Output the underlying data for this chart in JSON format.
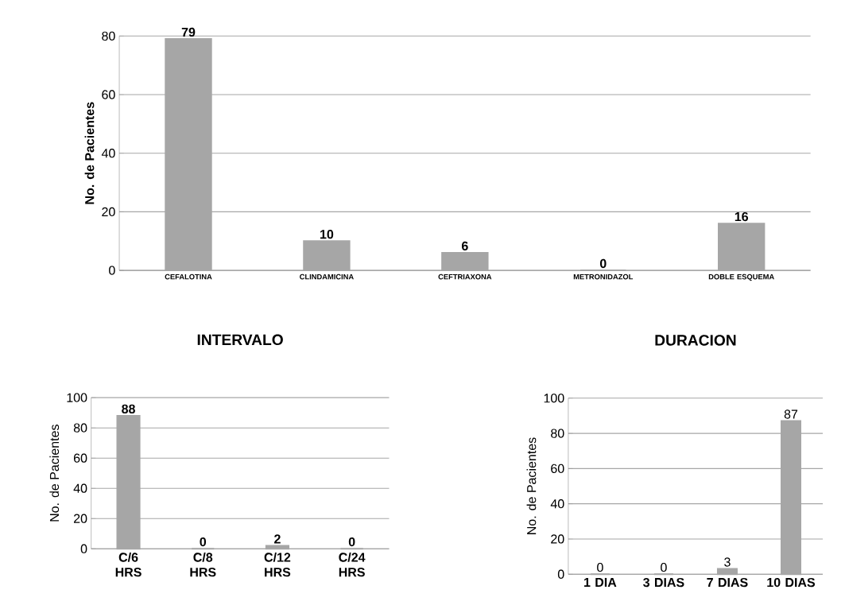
{
  "chart_data": [
    {
      "type": "bar",
      "ylabel": "No. de Pacientes",
      "categories": [
        "CEFALOTINA",
        "CLINDAMICINA",
        "CEFTRIAXONA",
        "METRONIDAZOL",
        "DOBLE ESQUEMA"
      ],
      "values": [
        79,
        10,
        6,
        0,
        16
      ],
      "color": "#a6a6a6",
      "ylim": [
        0,
        80
      ],
      "yticks": [
        0,
        20,
        40,
        60,
        80
      ],
      "grid": "y",
      "data_labels": true
    },
    {
      "type": "bar",
      "title": "INTERVALO",
      "ylabel": "No. de Pacientes",
      "categories": [
        "C/6 HRS",
        "C/8 HRS",
        "C/12 HRS",
        "C/24 HRS"
      ],
      "values": [
        88,
        0,
        2,
        0
      ],
      "color": "#a6a6a6",
      "ylim": [
        0,
        100
      ],
      "yticks": [
        0,
        20,
        40,
        60,
        80,
        100
      ],
      "grid": "y",
      "data_labels": true
    },
    {
      "type": "bar",
      "title": "DURACION",
      "ylabel": "No. de Pacientes",
      "categories": [
        "1 DIA",
        "3 DIAS",
        "7 DIAS",
        "10 DIAS"
      ],
      "values": [
        0,
        0,
        3,
        87
      ],
      "color": "#a6a6a6",
      "ylim": [
        0,
        100
      ],
      "yticks": [
        0,
        20,
        40,
        60,
        80,
        100
      ],
      "grid": "y",
      "data_labels": true
    }
  ]
}
